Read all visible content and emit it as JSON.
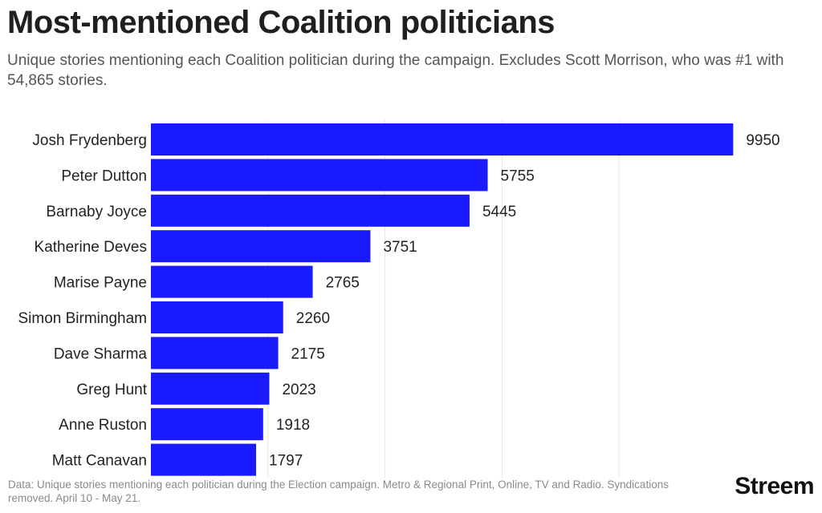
{
  "title": "Most-mentioned Coalition politicians",
  "subtitle": "Unique stories mentioning each Coalition politician during the campaign. Excludes Scott Morrison, who was #1 with 54,865 stories.",
  "footer_note": "Data: Unique stories mentioning each politician during the Election campaign. Metro & Regional Print, Online, TV and Radio. Syndications removed. April 10 - May 21.",
  "brand": "Streem",
  "chart_data": {
    "type": "bar",
    "orientation": "horizontal",
    "categories": [
      "Josh Frydenberg",
      "Peter Dutton",
      "Barnaby Joyce",
      "Katherine Deves",
      "Marise Payne",
      "Simon Birmingham",
      "Dave Sharma",
      "Greg Hunt",
      "Anne Ruston",
      "Matt Canavan"
    ],
    "values": [
      9950,
      5755,
      5445,
      3751,
      2765,
      2260,
      2175,
      2023,
      1918,
      1797
    ],
    "data_labels": [
      "9950",
      "5755",
      "5445",
      "3751",
      "2765",
      "2260",
      "2175",
      "2023",
      "1918",
      "1797"
    ],
    "xlim": [
      0,
      10000
    ],
    "gridlines_at": [
      2000,
      4000,
      6000,
      8000
    ],
    "grid": true,
    "bar_color": "#1a1aff",
    "gridline_color": "#e6e6e6"
  }
}
